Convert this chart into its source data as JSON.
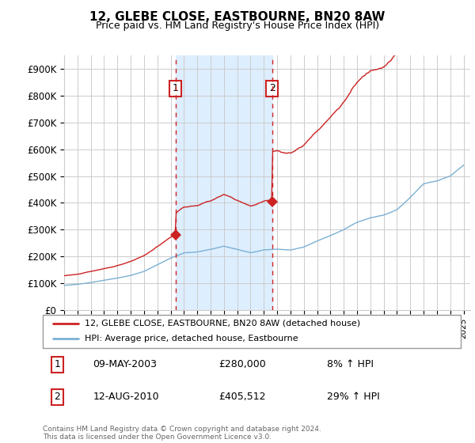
{
  "title": "12, GLEBE CLOSE, EASTBOURNE, BN20 8AW",
  "subtitle": "Price paid vs. HM Land Registry's House Price Index (HPI)",
  "ylim": [
    0,
    950000
  ],
  "yticks": [
    0,
    100000,
    200000,
    300000,
    400000,
    500000,
    600000,
    700000,
    800000,
    900000
  ],
  "ytick_labels": [
    "£0",
    "£100K",
    "£200K",
    "£300K",
    "£400K",
    "£500K",
    "£600K",
    "£700K",
    "£800K",
    "£900K"
  ],
  "xlim_start": 1995.0,
  "xlim_end": 2025.5,
  "background_color": "#ffffff",
  "plot_bg_color": "#ffffff",
  "grid_color": "#cccccc",
  "hpi_line_color": "#7ab0d4",
  "price_line_color": "#cc2222",
  "sale1_x": 2003.36,
  "sale1_y": 280000,
  "sale2_x": 2010.62,
  "sale2_y": 405512,
  "legend_label1": "12, GLEBE CLOSE, EASTBOURNE, BN20 8AW (detached house)",
  "legend_label2": "HPI: Average price, detached house, Eastbourne",
  "table_row1": [
    "1",
    "09-MAY-2003",
    "£280,000",
    "8% ↑ HPI"
  ],
  "table_row2": [
    "2",
    "12-AUG-2010",
    "£405,512",
    "29% ↑ HPI"
  ],
  "footnote": "Contains HM Land Registry data © Crown copyright and database right 2024.\nThis data is licensed under the Open Government Licence v3.0.",
  "highlight_color": "#ddeeff",
  "sale_vline_color": "#cc2222"
}
